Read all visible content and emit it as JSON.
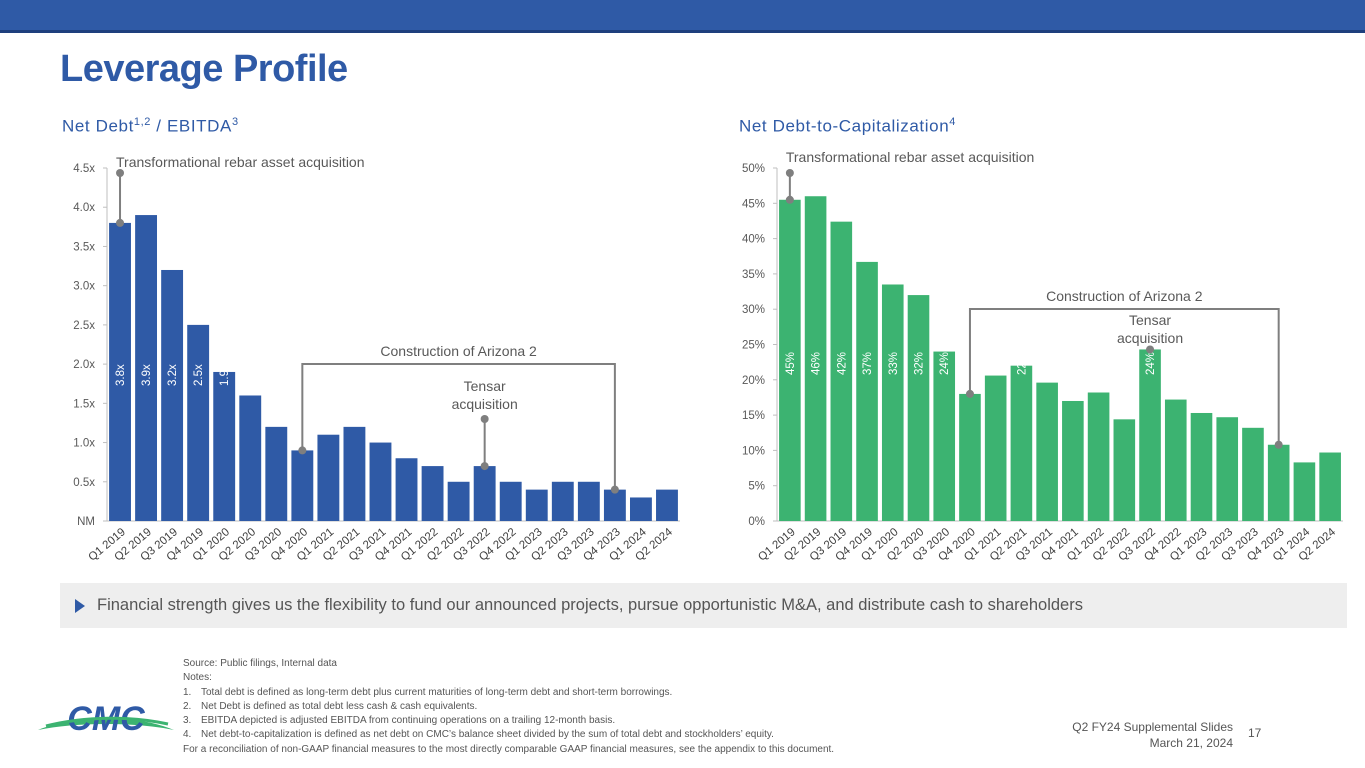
{
  "header": {
    "title": "Leverage Profile"
  },
  "left_chart_title": {
    "main": "Net Debt",
    "sup1": "1,2",
    "mid": " / EBITDA",
    "sup2": "3"
  },
  "right_chart_title": {
    "main": "Net Debt-to-Capitalization",
    "sup": "4"
  },
  "chart_data": [
    {
      "type": "bar",
      "categories": [
        "Q1 2019",
        "Q2 2019",
        "Q3 2019",
        "Q4 2019",
        "Q1 2020",
        "Q2 2020",
        "Q3 2020",
        "Q4 2020",
        "Q1 2021",
        "Q2 2021",
        "Q3 2021",
        "Q4 2021",
        "Q1 2022",
        "Q2 2022",
        "Q3 2022",
        "Q4 2022",
        "Q1 2023",
        "Q2 2023",
        "Q3 2023",
        "Q4 2023",
        "Q1 2024",
        "Q2 2024"
      ],
      "values": [
        3.8,
        3.9,
        3.2,
        2.5,
        1.9,
        1.6,
        1.2,
        0.9,
        1.1,
        1.2,
        1.0,
        0.8,
        0.7,
        0.5,
        0.7,
        0.5,
        0.4,
        0.5,
        0.5,
        0.4,
        0.3,
        0.4
      ],
      "labels": [
        "3.8x",
        "3.9x",
        "3.2x",
        "2.5x",
        "1.9x",
        "1.6x",
        "1.2x",
        "0.9x",
        "1.1x",
        "1.2x",
        "1.0x",
        "0.8x",
        "0.7x",
        "0.5x",
        "0.7x",
        "0.5x",
        "0.4x",
        "0.5x",
        "0.5x",
        "0.4x",
        "0.3x",
        "0.4x"
      ],
      "yticks": [
        "NM",
        "0.5x",
        "1.0x",
        "1.5x",
        "2.0x",
        "2.5x",
        "3.0x",
        "3.5x",
        "4.0x",
        "4.5x"
      ],
      "ylim": [
        0,
        4.5
      ],
      "color": "#2f5aa6",
      "annotations": {
        "acquisition": "Transformational rebar asset acquisition",
        "arizona": "Construction of Arizona 2",
        "tensar_line1": "Tensar",
        "tensar_line2": "acquisition"
      }
    },
    {
      "type": "bar",
      "categories": [
        "Q1 2019",
        "Q2 2019",
        "Q3 2019",
        "Q4 2019",
        "Q1 2020",
        "Q2 2020",
        "Q3 2020",
        "Q4 2020",
        "Q1 2021",
        "Q2 2021",
        "Q3 2021",
        "Q4 2021",
        "Q1 2022",
        "Q2 2022",
        "Q3 2022",
        "Q4 2022",
        "Q1 2023",
        "Q2 2023",
        "Q3 2023",
        "Q4 2023",
        "Q1 2024",
        "Q2 2024"
      ],
      "values": [
        45.5,
        46,
        42.4,
        36.7,
        33.5,
        32,
        24,
        18,
        20.6,
        22,
        19.6,
        17,
        18.2,
        14.4,
        24.3,
        17.2,
        15.3,
        14.7,
        13.2,
        10.8,
        8.3,
        9.7
      ],
      "labels": [
        "45%",
        "46%",
        "42%",
        "37%",
        "33%",
        "32%",
        "24%",
        "18%",
        "21%",
        "22%",
        "20%",
        "17%",
        "18%",
        "14%",
        "24%",
        "17%",
        "15%",
        "15%",
        "13%",
        "11%",
        "8%",
        "10%"
      ],
      "yticks": [
        "0%",
        "5%",
        "10%",
        "15%",
        "20%",
        "25%",
        "30%",
        "35%",
        "40%",
        "45%",
        "50%"
      ],
      "ylim": [
        0,
        50
      ],
      "color": "#3cb371",
      "annotations": {
        "acquisition": "Transformational rebar asset acquisition",
        "arizona": "Construction of Arizona 2",
        "tensar_line1": "Tensar",
        "tensar_line2": "acquisition"
      }
    }
  ],
  "callout": {
    "text": "Financial strength gives us the flexibility to fund our announced projects, pursue opportunistic M&A, and distribute cash to shareholders"
  },
  "notes": {
    "source": "Source: Public filings, Internal data",
    "heading": "Notes:",
    "items": [
      {
        "num": "1.",
        "text": "Total debt is defined as long-term debt plus current maturities of long-term debt and short-term borrowings."
      },
      {
        "num": "2.",
        "text": "Net Debt is defined as total debt less cash & cash equivalents."
      },
      {
        "num": "3.",
        "text": "EBITDA depicted is adjusted EBITDA from continuing operations on a trailing 12-month basis."
      },
      {
        "num": "4.",
        "text": "Net debt-to-capitalization is defined as net debt on CMC’s balance sheet divided by the sum of total debt and stockholders’ equity."
      }
    ],
    "reconciliation": "For a reconciliation of non-GAAP financial measures to the most directly comparable GAAP financial measures, see the appendix to this document."
  },
  "footer": {
    "line1": "Q2 FY24 Supplemental Slides",
    "line2": "March 21, 2024",
    "page": "17"
  },
  "logo": {
    "text": "CMC",
    "colors": {
      "blue": "#2f5aa6",
      "green": "#3cb371"
    }
  }
}
